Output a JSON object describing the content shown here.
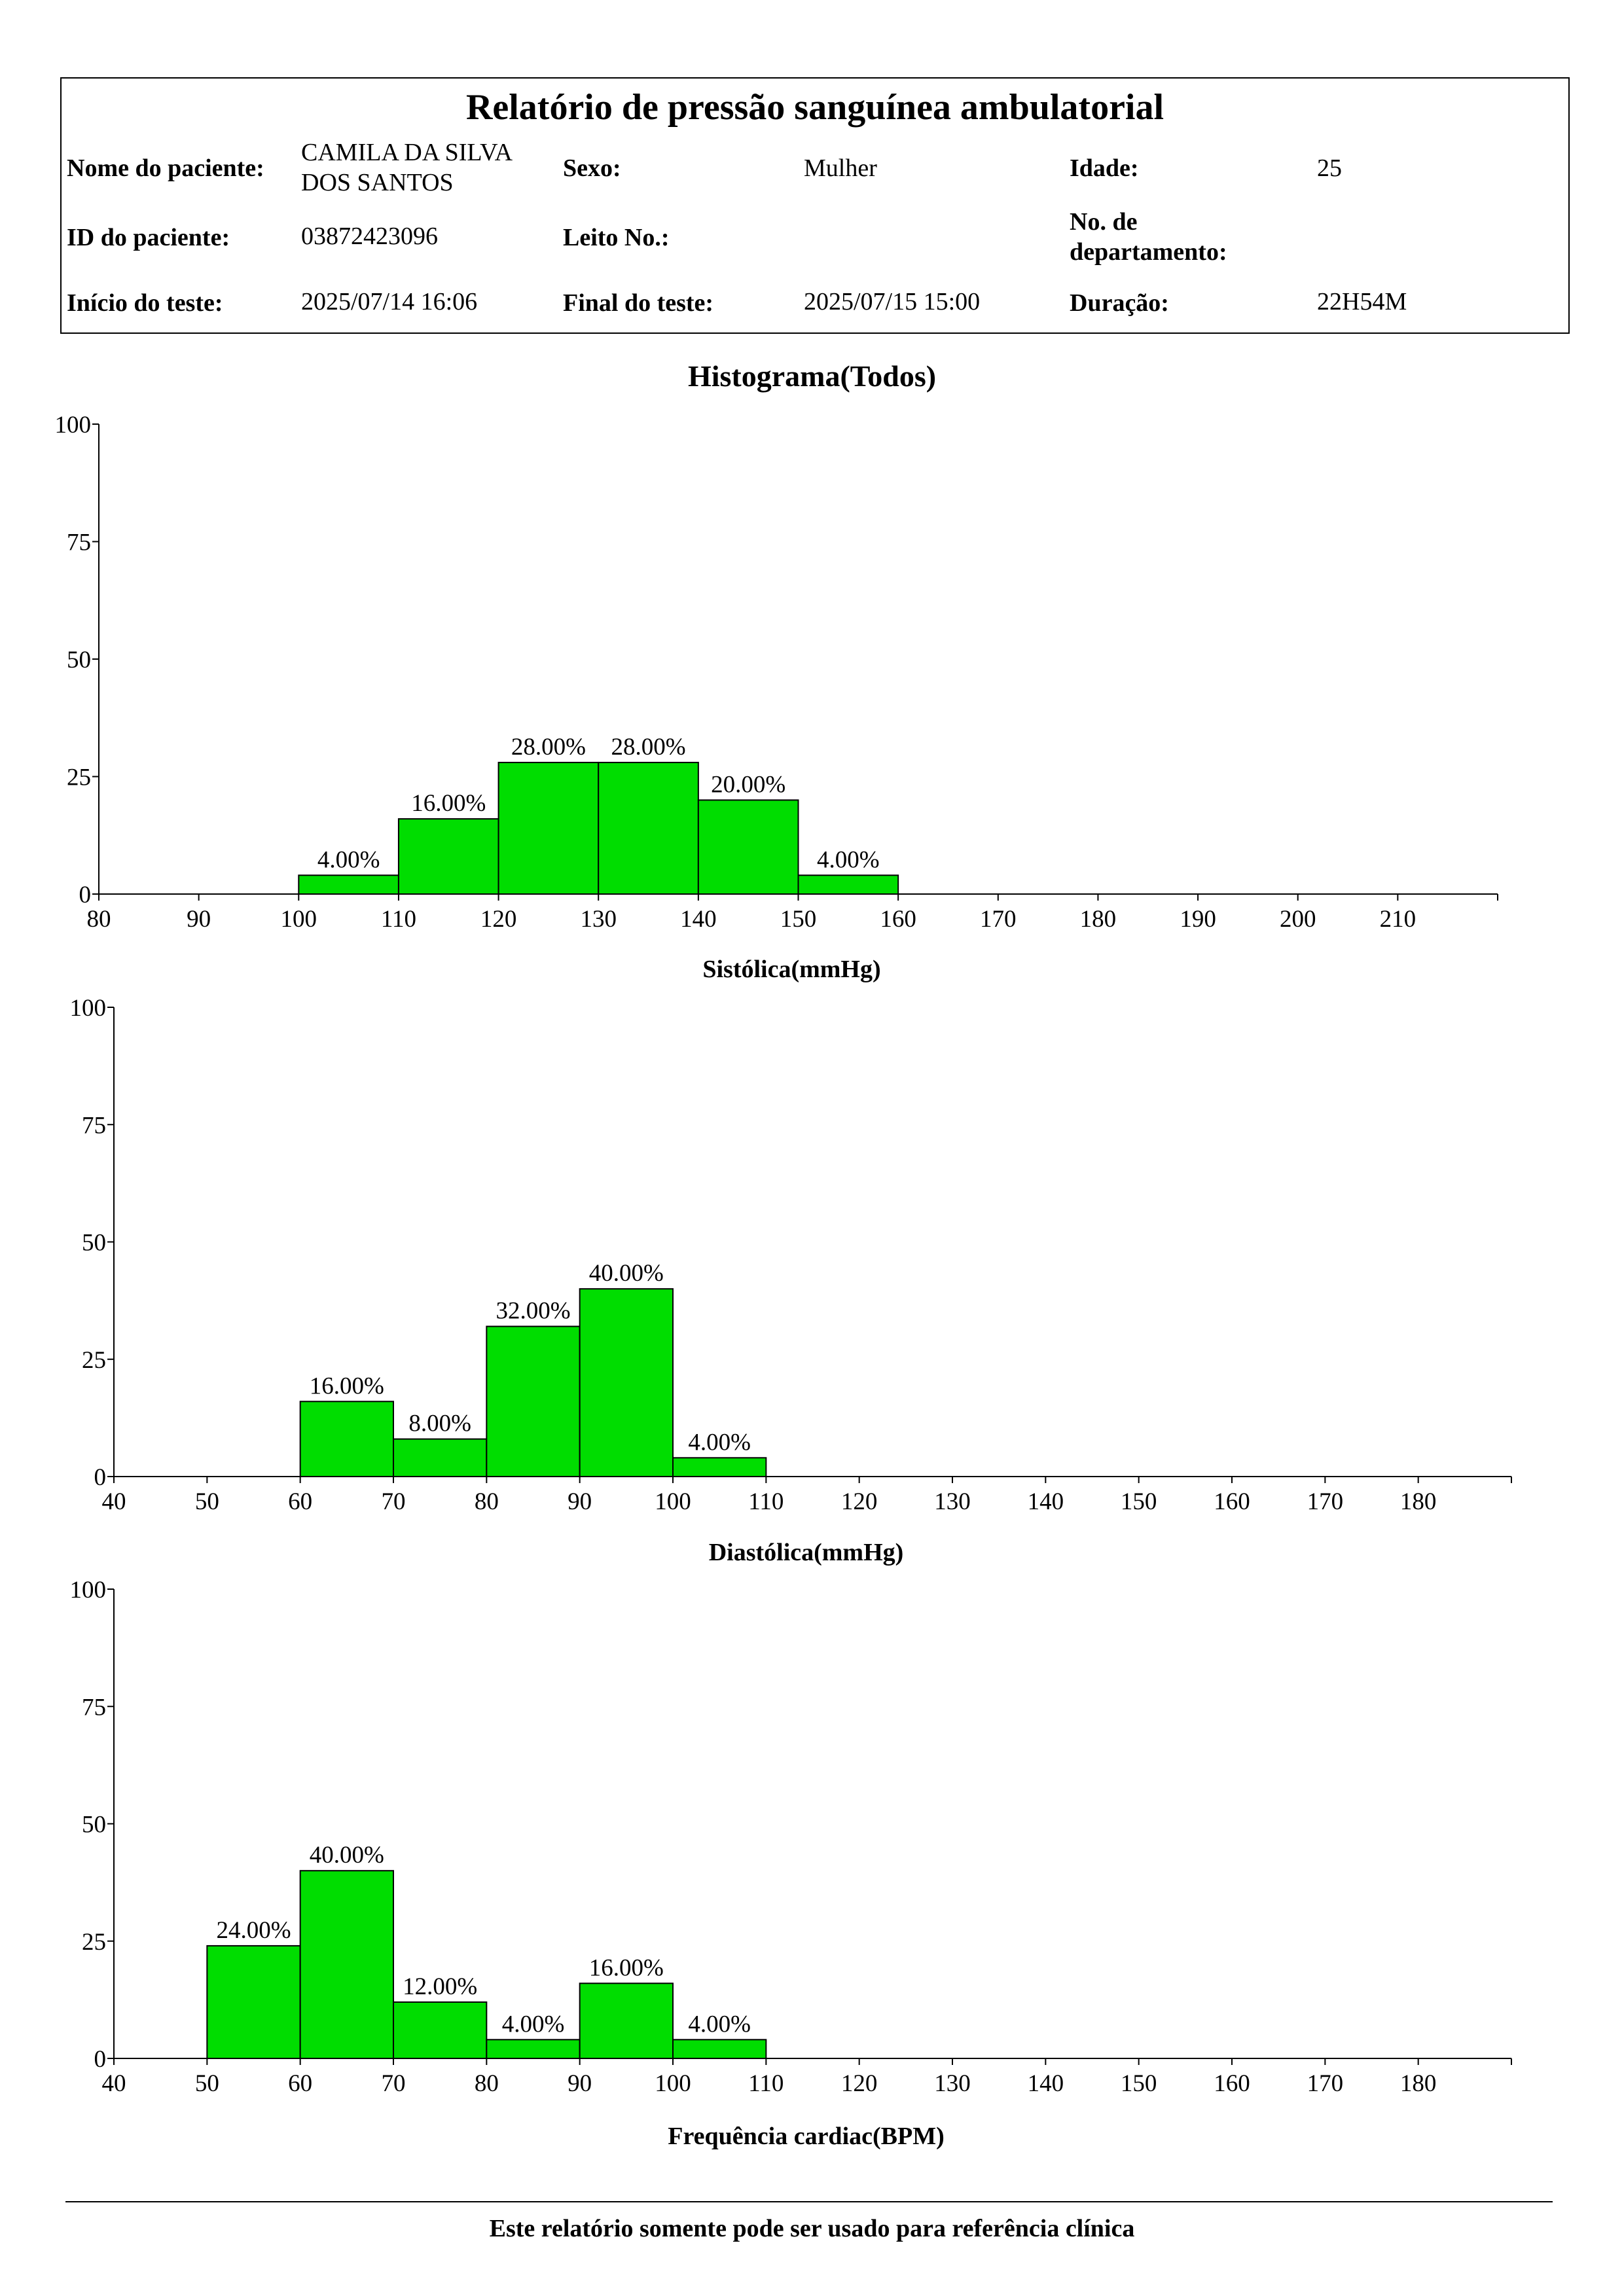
{
  "report": {
    "title": "Relatório de pressão sanguínea ambulatorial",
    "fields": {
      "name_label": "Nome do paciente:",
      "name_value_line1": "CAMILA DA SILVA",
      "name_value_line2": "DOS SANTOS",
      "sex_label": "Sexo:",
      "sex_value": "Mulher",
      "age_label": "Idade:",
      "age_value": "25",
      "id_label": "ID do paciente:",
      "id_value": "03872423096",
      "bed_label": "Leito No.:",
      "bed_value": "",
      "dept_label_line1": "No. de",
      "dept_label_line2": "departamento:",
      "dept_value": "",
      "start_label": "Início do teste:",
      "start_value": "2025/07/14 16:06",
      "end_label": "Final do teste:",
      "end_value": "2025/07/15 15:00",
      "duration_label": "Duração:",
      "duration_value": "22H54M"
    },
    "section_title": "Histograma(Todos)",
    "footer": "Este relatório somente pode ser usado para referência clínica"
  },
  "colors": {
    "bar_fill": "#00dd00",
    "bar_stroke": "#000000"
  },
  "chart_data": [
    {
      "type": "bar",
      "title": "",
      "xlabel": "Sistólica(mmHg)",
      "ylabel": "",
      "ylim": [
        0,
        100
      ],
      "yticks": [
        0,
        25,
        50,
        75,
        100
      ],
      "xlim": [
        80,
        220
      ],
      "xticks": [
        80,
        90,
        100,
        110,
        120,
        130,
        140,
        150,
        160,
        170,
        180,
        190,
        200,
        210
      ],
      "bins": [
        {
          "from": 100,
          "to": 110,
          "value": 4,
          "label": "4.00%"
        },
        {
          "from": 110,
          "to": 120,
          "value": 16,
          "label": "16.00%"
        },
        {
          "from": 120,
          "to": 130,
          "value": 28,
          "label": "28.00%"
        },
        {
          "from": 130,
          "to": 140,
          "value": 28,
          "label": "28.00%"
        },
        {
          "from": 140,
          "to": 150,
          "value": 20,
          "label": "20.00%"
        },
        {
          "from": 150,
          "to": 160,
          "value": 4,
          "label": "4.00%"
        }
      ]
    },
    {
      "type": "bar",
      "title": "",
      "xlabel": "Diastólica(mmHg)",
      "ylabel": "",
      "ylim": [
        0,
        100
      ],
      "yticks": [
        0,
        25,
        50,
        75,
        100
      ],
      "xlim": [
        40,
        190
      ],
      "xticks": [
        40,
        50,
        60,
        70,
        80,
        90,
        100,
        110,
        120,
        130,
        140,
        150,
        160,
        170,
        180
      ],
      "bins": [
        {
          "from": 60,
          "to": 70,
          "value": 16,
          "label": "16.00%"
        },
        {
          "from": 70,
          "to": 80,
          "value": 8,
          "label": "8.00%"
        },
        {
          "from": 80,
          "to": 90,
          "value": 32,
          "label": "32.00%"
        },
        {
          "from": 90,
          "to": 100,
          "value": 40,
          "label": "40.00%"
        },
        {
          "from": 100,
          "to": 110,
          "value": 4,
          "label": "4.00%"
        }
      ]
    },
    {
      "type": "bar",
      "title": "",
      "xlabel": "Frequência cardiac(BPM)",
      "ylabel": "",
      "ylim": [
        0,
        100
      ],
      "yticks": [
        0,
        25,
        50,
        75,
        100
      ],
      "xlim": [
        40,
        190
      ],
      "xticks": [
        40,
        50,
        60,
        70,
        80,
        90,
        100,
        110,
        120,
        130,
        140,
        150,
        160,
        170,
        180
      ],
      "bins": [
        {
          "from": 50,
          "to": 60,
          "value": 24,
          "label": "24.00%"
        },
        {
          "from": 60,
          "to": 70,
          "value": 40,
          "label": "40.00%"
        },
        {
          "from": 70,
          "to": 80,
          "value": 12,
          "label": "12.00%"
        },
        {
          "from": 80,
          "to": 90,
          "value": 4,
          "label": "4.00%"
        },
        {
          "from": 90,
          "to": 100,
          "value": 16,
          "label": "16.00%"
        },
        {
          "from": 100,
          "to": 110,
          "value": 4,
          "label": "4.00%"
        }
      ]
    }
  ]
}
